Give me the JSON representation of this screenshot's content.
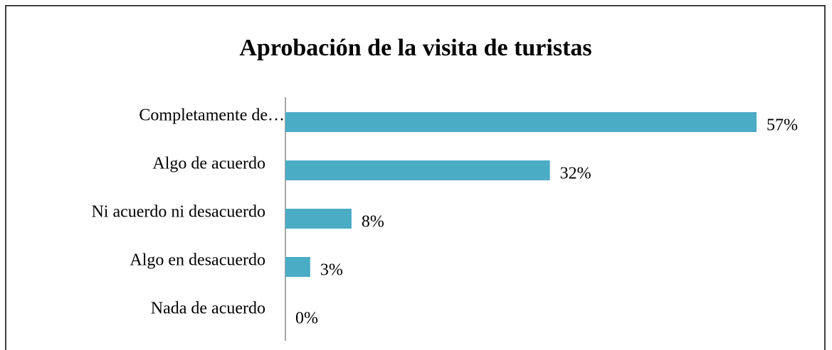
{
  "chart_data": {
    "type": "bar",
    "orientation": "horizontal",
    "title": "Aprobación de la visita de turistas",
    "categories": [
      "Completamente de…",
      "Algo de acuerdo",
      "Ni acuerdo ni desacuerdo",
      "Algo en desacuerdo",
      "Nada de acuerdo"
    ],
    "values": [
      57,
      32,
      8,
      3,
      0
    ],
    "value_labels": [
      "57%",
      "32%",
      "8%",
      "3%",
      "0%"
    ],
    "color": "#4bacc6"
  }
}
